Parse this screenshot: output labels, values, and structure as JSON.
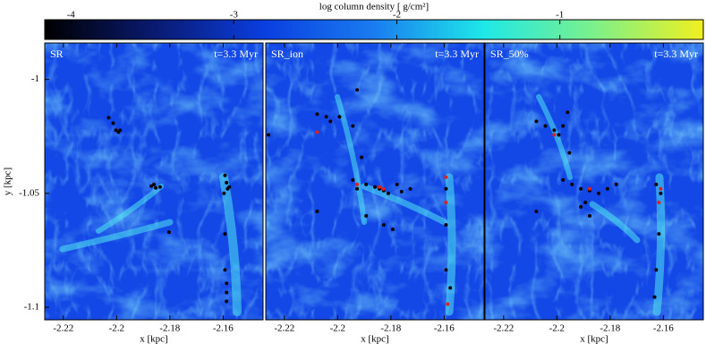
{
  "colorbar": {
    "label": "log column density [ g/cm²]",
    "clim": [
      -4.16,
      -0.12
    ],
    "ticks": [
      -4,
      -3,
      -2,
      -1
    ],
    "colormap": [
      "#000000",
      "#0a1a70",
      "#0a3ee0",
      "#1a7cf0",
      "#1ee8e8",
      "#7cf08a",
      "#f0f020"
    ]
  },
  "chart_data": [
    {
      "type": "scatter",
      "title": "SR",
      "annotation": "t=3.3 Myr",
      "xlabel": "x [kpc]",
      "ylabel": "y [kpc]",
      "xlim": [
        -2.227,
        -2.145
      ],
      "ylim": [
        -1.1055,
        -0.984
      ],
      "xticks": [
        -2.22,
        -2.2,
        -2.18,
        -2.16
      ],
      "yticks": [
        -1,
        -1.05,
        -1.1
      ],
      "series": [
        {
          "color": "#000000",
          "x": [
            -2.203,
            -2.2013,
            -2.2003,
            -2.1993,
            -2.1987,
            -2.187,
            -2.1853,
            -2.1837,
            -2.186,
            -2.1803,
            -2.1593,
            -2.1587,
            -2.1577,
            -2.1597,
            -2.1593,
            -2.1593,
            -2.1587,
            -2.1587,
            -2.1587,
            -2.1583
          ],
          "y": [
            -1.0168,
            -1.0192,
            -1.0223,
            -1.0231,
            -1.0223,
            -1.0468,
            -1.0476,
            -1.0472,
            -1.0461,
            -1.067,
            -1.0421,
            -1.0453,
            -1.0472,
            -1.05,
            -1.0678,
            -1.0836,
            -1.0895,
            -1.0935,
            -1.0974,
            -1.048
          ]
        }
      ]
    },
    {
      "type": "scatter",
      "title": "SR_ion",
      "annotation": "t=3.3 Myr",
      "xlabel": "x [kpc]",
      "xlim": [
        -2.227,
        -2.145
      ],
      "ylim": [
        -1.1055,
        -0.984
      ],
      "xticks": [
        -2.22,
        -2.2,
        -2.18,
        -2.16
      ],
      "series": [
        {
          "color": "#000000",
          "x": [
            -2.226,
            -2.2077,
            -2.2043,
            -2.2027,
            -2.1993,
            -2.1927,
            -2.1943,
            -2.191,
            -2.1927,
            -2.1943,
            -2.1893,
            -2.186,
            -2.1843,
            -2.1827,
            -2.181,
            -2.1777,
            -2.176,
            -2.1727,
            -2.1827,
            -2.1793,
            -2.2077,
            -2.1893,
            -2.1593,
            -2.1593,
            -2.1593,
            -2.1577
          ],
          "y": [
            -1.0243,
            -1.0152,
            -1.0164,
            -1.0184,
            -1.0164,
            -1.0046,
            -1.0204,
            -1.0342,
            -1.048,
            -1.0441,
            -1.0461,
            -1.0472,
            -1.048,
            -1.0488,
            -1.05,
            -1.0461,
            -1.0492,
            -1.048,
            -1.0638,
            -1.0658,
            -1.0579,
            -1.0599,
            -1.048,
            -1.0638,
            -1.0836,
            -1.0915
          ]
        },
        {
          "color": "#e0201a",
          "x": [
            -2.2077,
            -2.1843,
            -2.1827,
            -2.1593,
            -2.1593,
            -2.1587,
            -2.1927
          ],
          "y": [
            -1.0231,
            -1.0472,
            -1.048,
            -1.0429,
            -1.054,
            -1.0986,
            -1.0461
          ]
        }
      ]
    },
    {
      "type": "scatter",
      "title": "SR_50%",
      "annotation": "t=3.3 Myr",
      "xlabel": "x [kpc]",
      "xlim": [
        -2.227,
        -2.145
      ],
      "ylim": [
        -1.1055,
        -0.984
      ],
      "xticks": [
        -2.22,
        -2.2,
        -2.18,
        -2.16
      ],
      "series": [
        {
          "color": "#000000",
          "x": [
            -2.2077,
            -2.2043,
            -2.201,
            -2.1977,
            -2.196,
            -2.1993,
            -2.1953,
            -2.1977,
            -2.1943,
            -2.191,
            -2.1877,
            -2.1843,
            -2.181,
            -2.1777,
            -2.1893,
            -2.1877,
            -2.2077,
            -2.1627,
            -2.161,
            -2.1617,
            -2.1627,
            -2.1633,
            -2.191
          ],
          "y": [
            -1.0184,
            -1.0204,
            -1.0223,
            -1.0204,
            -1.0144,
            -1.0243,
            -1.0322,
            -1.0441,
            -1.0461,
            -1.048,
            -1.0488,
            -1.05,
            -1.048,
            -1.0461,
            -1.054,
            -1.0599,
            -1.0579,
            -1.0461,
            -1.05,
            -1.0678,
            -1.0836,
            -1.0955,
            -1.0559
          ]
        },
        {
          "color": "#e0201a",
          "x": [
            -2.201,
            -2.1877,
            -2.161,
            -2.1617
          ],
          "y": [
            -1.0243,
            -1.048,
            -1.048,
            -1.054
          ]
        }
      ]
    }
  ]
}
